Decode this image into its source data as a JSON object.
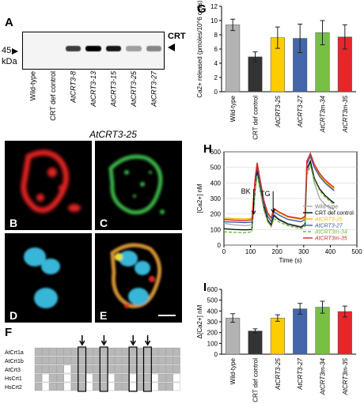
{
  "panels": {
    "A": {
      "label": "A",
      "marker_value": "45",
      "marker_unit": "kDa",
      "band_label": "CRT",
      "lanes": [
        "Wild-type",
        "CRT def control",
        "AtCRT3-8",
        "AtCRT3-13",
        "AtCRT3-15",
        "AtCRT3-25",
        "AtCRT3-27"
      ],
      "band_intensity": [
        0,
        0,
        0.75,
        1.0,
        0.9,
        0.35,
        0.45
      ]
    },
    "micrographs": {
      "title": "AtCRT3-25",
      "labels": [
        "B",
        "C",
        "D",
        "E"
      ]
    },
    "F": {
      "label": "F",
      "rows": [
        "AtCrt1a",
        "AtCrt1b",
        "AtCrt3",
        "HsCrt1",
        "HsCrt2"
      ]
    },
    "G": {
      "label": "G"
    },
    "H": {
      "label": "H",
      "bk_label": "BK",
      "tg_label": "TG"
    },
    "I": {
      "label": "I"
    }
  },
  "chart_data": [
    {
      "id": "G",
      "type": "bar",
      "categories": [
        "Wild-type",
        "CRT def control",
        "AtCRT3-25",
        "AtCRT3-27",
        "AtCRT3m-34",
        "AtCRT3m-35"
      ],
      "values": [
        9.4,
        4.9,
        7.6,
        7.5,
        8.3,
        7.7
      ],
      "errors": [
        0.8,
        0.7,
        1.5,
        2.0,
        1.7,
        1.7
      ],
      "colors": [
        "#b3b3b3",
        "#333333",
        "#ffcc00",
        "#4466aa",
        "#77c043",
        "#e8262a"
      ],
      "ylabel": "Ca2+ released (pmoles/10^6 cells)",
      "ylim": [
        0,
        12
      ],
      "yticks": [
        0,
        2,
        4,
        6,
        8,
        10,
        12
      ]
    },
    {
      "id": "H",
      "type": "line",
      "xlabel": "Time (s)",
      "ylabel": "[Ca2+] nM",
      "xlim": [
        0,
        500
      ],
      "ylim": [
        0,
        600
      ],
      "xticks": [
        0,
        100,
        200,
        300,
        400,
        500
      ],
      "yticks": [
        0,
        100,
        200,
        300,
        400,
        500,
        600
      ],
      "legend": "top-right",
      "series": [
        {
          "name": "Wild-type",
          "color": "#aaaaaa",
          "dash": "",
          "points": [
            [
              0,
              140
            ],
            [
              40,
              130
            ],
            [
              80,
              125
            ],
            [
              105,
              130
            ],
            [
              118,
              350
            ],
            [
              125,
              470
            ],
            [
              135,
              380
            ],
            [
              150,
              230
            ],
            [
              165,
              150
            ],
            [
              178,
              120
            ],
            [
              188,
              200
            ],
            [
              205,
              170
            ],
            [
              240,
              140
            ],
            [
              290,
              120
            ],
            [
              305,
              140
            ],
            [
              312,
              470
            ],
            [
              325,
              530
            ],
            [
              340,
              400
            ],
            [
              360,
              300
            ],
            [
              380,
              260
            ],
            [
              400,
              240
            ],
            [
              415,
              230
            ]
          ]
        },
        {
          "name": "CRT def control",
          "color": "#111111",
          "dash": "",
          "points": [
            [
              0,
              105
            ],
            [
              40,
              100
            ],
            [
              80,
              98
            ],
            [
              105,
              100
            ],
            [
              118,
              380
            ],
            [
              125,
              480
            ],
            [
              135,
              390
            ],
            [
              150,
              250
            ],
            [
              165,
              160
            ],
            [
              178,
              130
            ],
            [
              188,
              190
            ],
            [
              205,
              165
            ],
            [
              240,
              135
            ],
            [
              290,
              115
            ],
            [
              305,
              130
            ],
            [
              312,
              490
            ],
            [
              325,
              540
            ],
            [
              340,
              430
            ],
            [
              360,
              360
            ],
            [
              380,
              320
            ],
            [
              400,
              290
            ],
            [
              415,
              270
            ]
          ]
        },
        {
          "name": "AtCRT3-25",
          "color": "#f5b800",
          "dash": "",
          "points": [
            [
              0,
              175
            ],
            [
              40,
              170
            ],
            [
              80,
              168
            ],
            [
              105,
              172
            ],
            [
              118,
              430
            ],
            [
              125,
              520
            ],
            [
              135,
              420
            ],
            [
              150,
              280
            ],
            [
              165,
              200
            ],
            [
              178,
              170
            ],
            [
              188,
              230
            ],
            [
              205,
              210
            ],
            [
              240,
              180
            ],
            [
              290,
              165
            ],
            [
              305,
              180
            ],
            [
              312,
              530
            ],
            [
              325,
              580
            ],
            [
              340,
              510
            ],
            [
              360,
              450
            ],
            [
              380,
              410
            ],
            [
              400,
              380
            ],
            [
              415,
              360
            ]
          ]
        },
        {
          "name": "AtCRT3-27",
          "color": "#3b5ba5",
          "dash": "",
          "points": [
            [
              0,
              150
            ],
            [
              40,
              148
            ],
            [
              80,
              145
            ],
            [
              105,
              148
            ],
            [
              118,
              420
            ],
            [
              125,
              510
            ],
            [
              135,
              410
            ],
            [
              150,
              270
            ],
            [
              165,
              185
            ],
            [
              178,
              150
            ],
            [
              188,
              215
            ],
            [
              205,
              195
            ],
            [
              240,
              165
            ],
            [
              290,
              150
            ],
            [
              305,
              165
            ],
            [
              312,
              520
            ],
            [
              325,
              570
            ],
            [
              340,
              500
            ],
            [
              360,
              440
            ],
            [
              380,
              400
            ],
            [
              400,
              370
            ],
            [
              415,
              350
            ]
          ]
        },
        {
          "name": "AtCRT3m-34",
          "color": "#6dbb3a",
          "dash": "4,2",
          "points": [
            [
              0,
              85
            ],
            [
              40,
              82
            ],
            [
              80,
              80
            ],
            [
              105,
              85
            ],
            [
              118,
              360
            ],
            [
              125,
              450
            ],
            [
              135,
              360
            ],
            [
              150,
              230
            ],
            [
              165,
              150
            ],
            [
              178,
              118
            ],
            [
              188,
              170
            ],
            [
              205,
              150
            ],
            [
              240,
              125
            ],
            [
              290,
              105
            ],
            [
              305,
              120
            ],
            [
              312,
              450
            ],
            [
              325,
              510
            ],
            [
              340,
              420
            ],
            [
              360,
              350
            ],
            [
              380,
              310
            ],
            [
              400,
              280
            ],
            [
              415,
              260
            ]
          ]
        },
        {
          "name": "AtCRT3m-35",
          "color": "#d62828",
          "dash": "",
          "points": [
            [
              0,
              165
            ],
            [
              40,
              160
            ],
            [
              80,
              158
            ],
            [
              105,
              162
            ],
            [
              118,
              440
            ],
            [
              125,
              530
            ],
            [
              135,
              430
            ],
            [
              150,
              290
            ],
            [
              165,
              205
            ],
            [
              178,
              175
            ],
            [
              188,
              235
            ],
            [
              205,
              215
            ],
            [
              240,
              185
            ],
            [
              290,
              170
            ],
            [
              305,
              185
            ],
            [
              312,
              540
            ],
            [
              325,
              590
            ],
            [
              340,
              520
            ],
            [
              360,
              460
            ],
            [
              380,
              420
            ],
            [
              400,
              390
            ],
            [
              415,
              370
            ]
          ]
        }
      ]
    },
    {
      "id": "I",
      "type": "bar",
      "categories": [
        "Wild-type",
        "CRT def control",
        "AtCRT3-25",
        "AtCRT3-27",
        "AtCRT3m-34",
        "AtCRT3m-35"
      ],
      "values": [
        335,
        215,
        335,
        420,
        435,
        395
      ],
      "errors": [
        40,
        20,
        30,
        50,
        55,
        50
      ],
      "colors": [
        "#b3b3b3",
        "#333333",
        "#ffcc00",
        "#4466aa",
        "#77c043",
        "#e8262a"
      ],
      "ylabel": "Δ[Ca2+] nM",
      "ylim": [
        0,
        600
      ],
      "yticks": [
        0,
        100,
        200,
        300,
        400,
        500,
        600
      ]
    }
  ]
}
